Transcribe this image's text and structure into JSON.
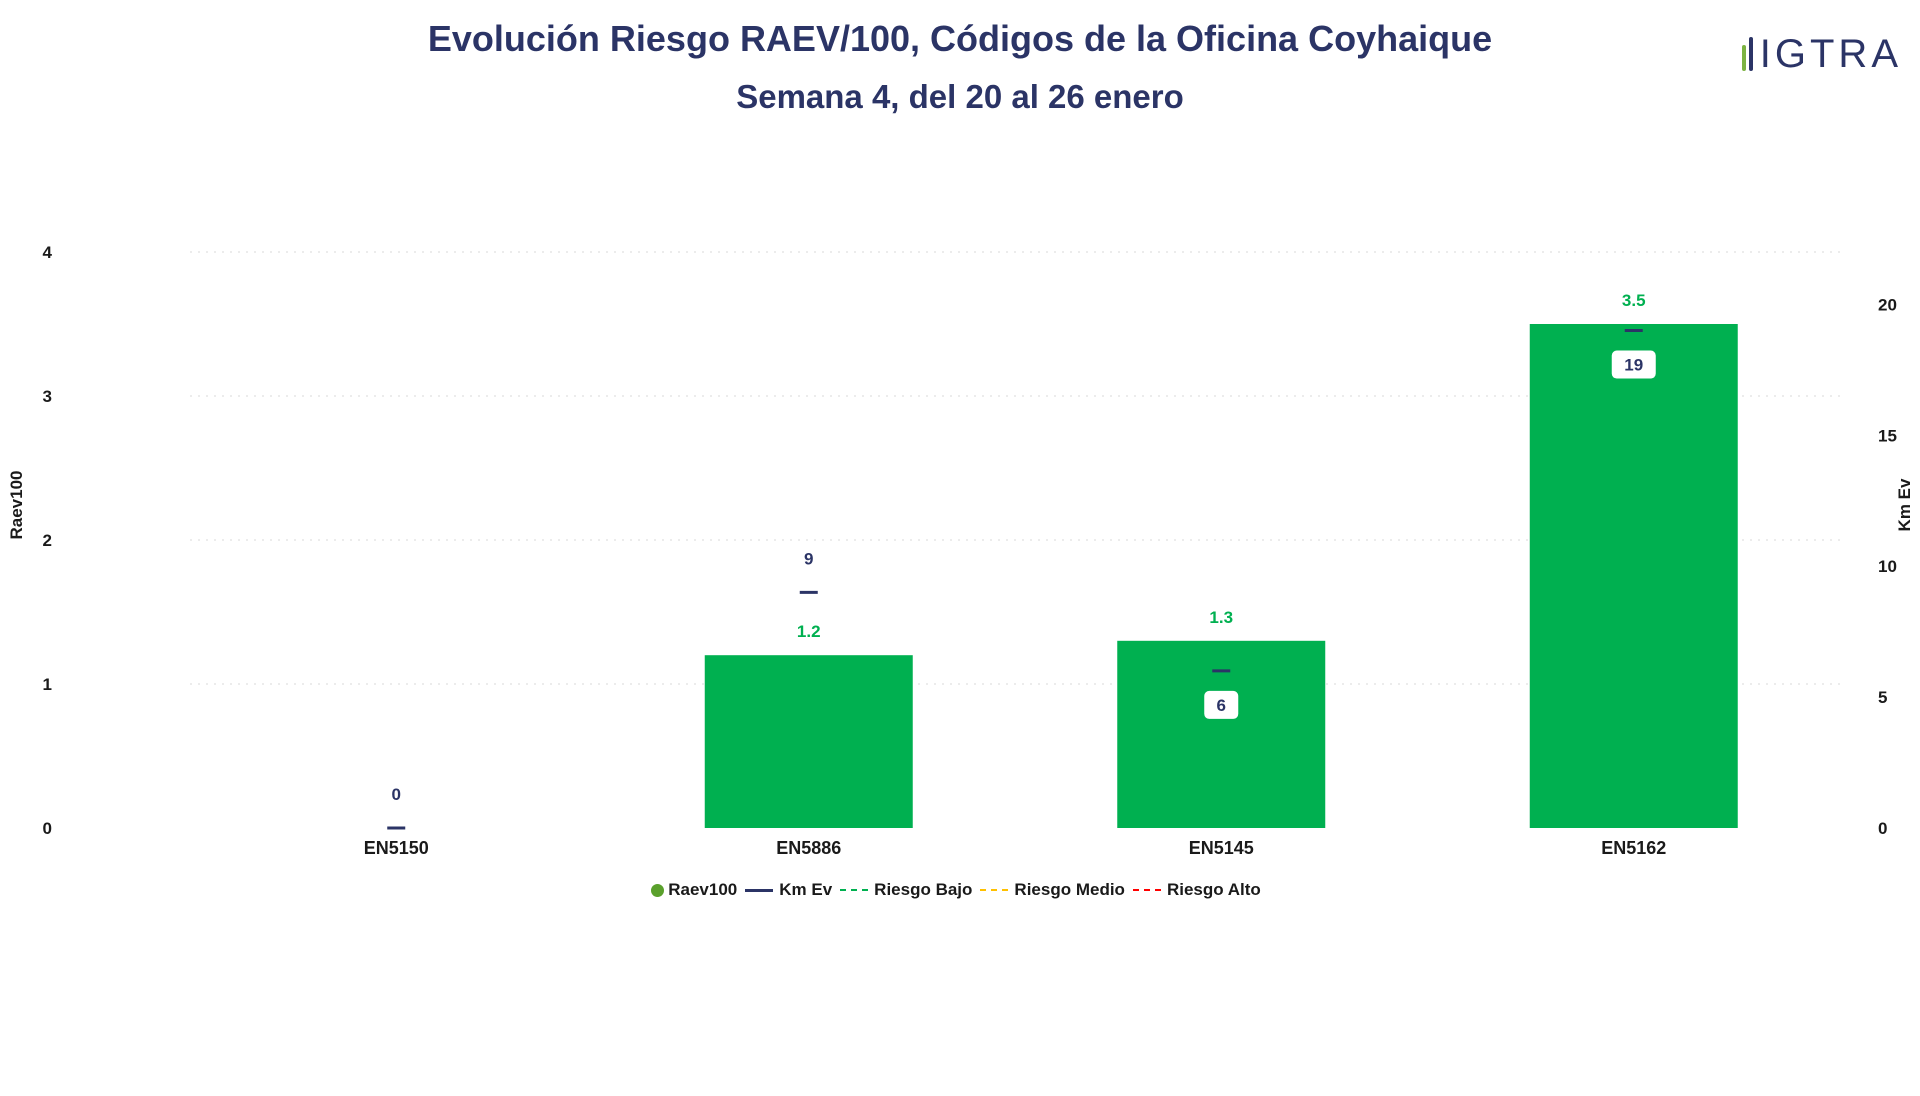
{
  "header": {
    "title": "Evolución Riesgo RAEV/100, Códigos de la Oficina Coyhaique",
    "subtitle": "Semana 4, del 20 al 26 enero"
  },
  "logo": {
    "text": "IGTRA"
  },
  "colors": {
    "bar": "#00b050",
    "bar_label": "#00b050",
    "km_line": "#2b3466",
    "riesgo_bajo": "#00b050",
    "riesgo_medio": "#ffc000",
    "riesgo_alto": "#ff0000",
    "legend_dot": "#5aa02c"
  },
  "legend": {
    "items": [
      {
        "label": "Raev100",
        "style": "dot",
        "color": "#5aa02c"
      },
      {
        "label": "Km Ev",
        "style": "line",
        "color": "#2b3466"
      },
      {
        "label": "Riesgo Bajo",
        "style": "dashed",
        "color": "#00b050"
      },
      {
        "label": "Riesgo Medio",
        "style": "dashed",
        "color": "#ffc000"
      },
      {
        "label": "Riesgo Alto",
        "style": "dashed",
        "color": "#ff0000"
      }
    ]
  },
  "chart_data": {
    "type": "bar",
    "categories": [
      "EN5150",
      "EN5886",
      "EN5145",
      "EN5162"
    ],
    "series": [
      {
        "name": "Raev100",
        "type": "bar",
        "axis": "left",
        "values": [
          0,
          1.2,
          1.3,
          3.5
        ],
        "labels": [
          "",
          "1.2",
          "1.3",
          "3.5"
        ]
      },
      {
        "name": "Km Ev",
        "type": "marker",
        "axis": "right",
        "values": [
          0,
          9,
          6,
          19
        ],
        "labels": [
          "0",
          "9",
          "6",
          "19"
        ]
      }
    ],
    "ylabel": "Raev100",
    "ylabel_right": "Km Ev",
    "ylim": [
      0,
      4
    ],
    "ylim_right": [
      0,
      22
    ],
    "yticks_left": [
      "0",
      "1",
      "2",
      "3",
      "4"
    ],
    "yticks_right": [
      "0",
      "5",
      "10",
      "15",
      "20"
    ],
    "grid": true,
    "legend_position": "bottom"
  }
}
